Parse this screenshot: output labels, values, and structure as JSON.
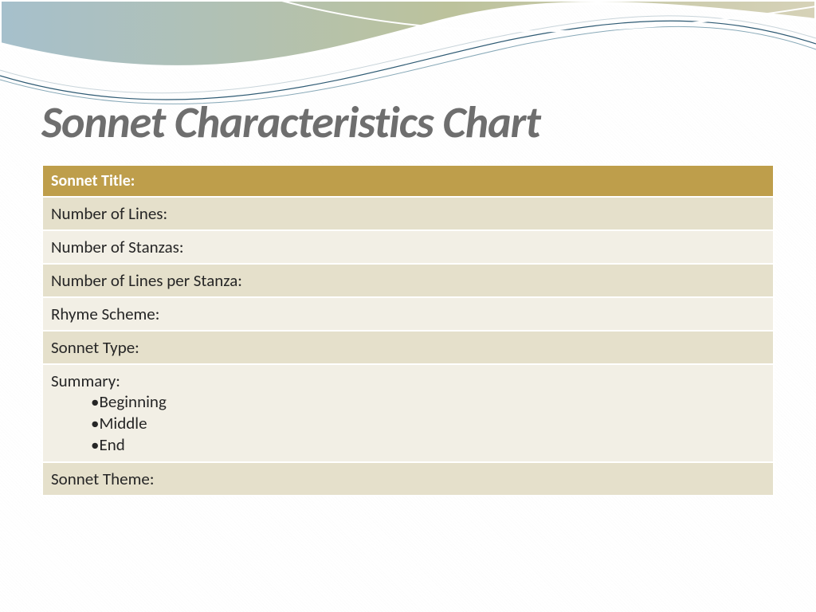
{
  "slide": {
    "title": "Sonnet Characteristics Chart",
    "title_color": "#6e6e6e",
    "title_fontsize": 56,
    "background": "#ffffff"
  },
  "table": {
    "header_bg": "#be9e4b",
    "header_fg": "#ffffff",
    "row_alt_dark": "#e5e0cb",
    "row_alt_light": "#f2efe5",
    "cell_fontsize": 21,
    "cell_fg": "#262626",
    "rows": [
      {
        "label": "Sonnet Title:",
        "style": "header"
      },
      {
        "label": "Number of Lines:",
        "style": "dark"
      },
      {
        "label": "Number of Stanzas:",
        "style": "light"
      },
      {
        "label": "Number of Lines per Stanza:",
        "style": "dark"
      },
      {
        "label": "Rhyme Scheme:",
        "style": "light"
      },
      {
        "label": "Sonnet Type:",
        "style": "dark"
      },
      {
        "label": "Summary:",
        "style": "light",
        "subitems": [
          "Beginning",
          "Middle",
          "End"
        ]
      },
      {
        "label": "Sonnet Theme:",
        "style": "dark"
      }
    ]
  },
  "header_art": {
    "gradient_start": "#a6c0cc",
    "gradient_mid": "#bcc29c",
    "gradient_end": "#d6d2b8",
    "line_color_1": "#2e5a73",
    "line_color_2": "#88a9b8",
    "line_color_3": "#c8d4da"
  }
}
